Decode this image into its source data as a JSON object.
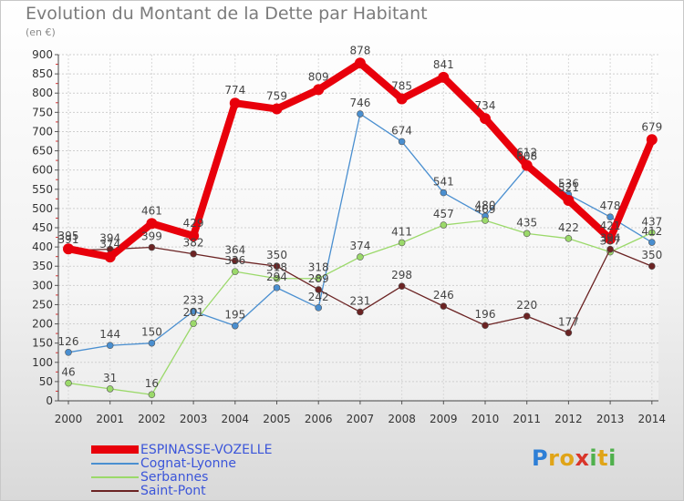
{
  "header": {
    "title": "Evolution du Montant de la Dette par Habitant",
    "subtitle": "(en €)"
  },
  "logo": {
    "letters": [
      "P",
      "r",
      "o",
      "x",
      "i",
      "t",
      "i"
    ],
    "colors": [
      "#2e7fd6",
      "#e0a418",
      "#e0a418",
      "#d9352a",
      "#4fb04c",
      "#e0a418",
      "#4fb04c"
    ]
  },
  "chart_data": {
    "type": "line",
    "title": "Evolution du Montant de la Dette par Habitant",
    "subtitle": "(en €)",
    "xlabel": "",
    "ylabel": "",
    "x": [
      "2000",
      "2001",
      "2002",
      "2003",
      "2004",
      "2005",
      "2006",
      "2007",
      "2008",
      "2009",
      "2010",
      "2011",
      "2012",
      "2013",
      "2014"
    ],
    "ylim": [
      0,
      900
    ],
    "yticks": [
      0,
      50,
      100,
      150,
      200,
      250,
      300,
      350,
      400,
      450,
      500,
      550,
      600,
      650,
      700,
      750,
      800,
      850,
      900
    ],
    "grid": true,
    "legend_position": "bottom-left",
    "series": [
      {
        "name": "ESPINASSE-VOZELLE",
        "color": "#e8000b",
        "emphasis": true,
        "values": [
          395,
          374,
          461,
          429,
          774,
          759,
          809,
          878,
          785,
          841,
          734,
          612,
          521,
          421,
          679
        ],
        "labels": [
          "395",
          "374",
          "461",
          "429",
          "774",
          "759",
          "809",
          "878",
          "785",
          "841",
          "734",
          "612",
          "521",
          "421",
          "679"
        ]
      },
      {
        "name": "Cognat-Lyonne",
        "color": "#4a8fd0",
        "emphasis": false,
        "values": [
          126,
          144,
          150,
          233,
          195,
          294,
          242,
          746,
          674,
          541,
          480,
          608,
          536,
          478,
          412
        ],
        "labels": [
          "126",
          "144",
          "150",
          "233",
          "195",
          "294",
          "242",
          "746",
          "674",
          "541",
          "480",
          "608",
          "536",
          "478",
          "412"
        ]
      },
      {
        "name": "Serbannes",
        "color": "#9bd96a",
        "emphasis": false,
        "values": [
          46,
          31,
          16,
          201,
          336,
          318,
          318,
          374,
          411,
          457,
          469,
          435,
          422,
          387,
          437
        ],
        "labels": [
          "46",
          "31",
          "16",
          "201",
          "336",
          "318",
          "318",
          "374",
          "411",
          "457",
          "469",
          "435",
          "422",
          "387",
          "437"
        ]
      },
      {
        "name": "Saint-Pont",
        "color": "#6b2323",
        "emphasis": false,
        "values": [
          391,
          394,
          399,
          382,
          364,
          350,
          289,
          231,
          298,
          246,
          196,
          220,
          177,
          394,
          350
        ],
        "labels": [
          "391",
          "394",
          "399",
          "382",
          "364",
          "350",
          "289",
          "231",
          "298",
          "246",
          "196",
          "220",
          "177",
          "394",
          "350"
        ]
      }
    ]
  }
}
